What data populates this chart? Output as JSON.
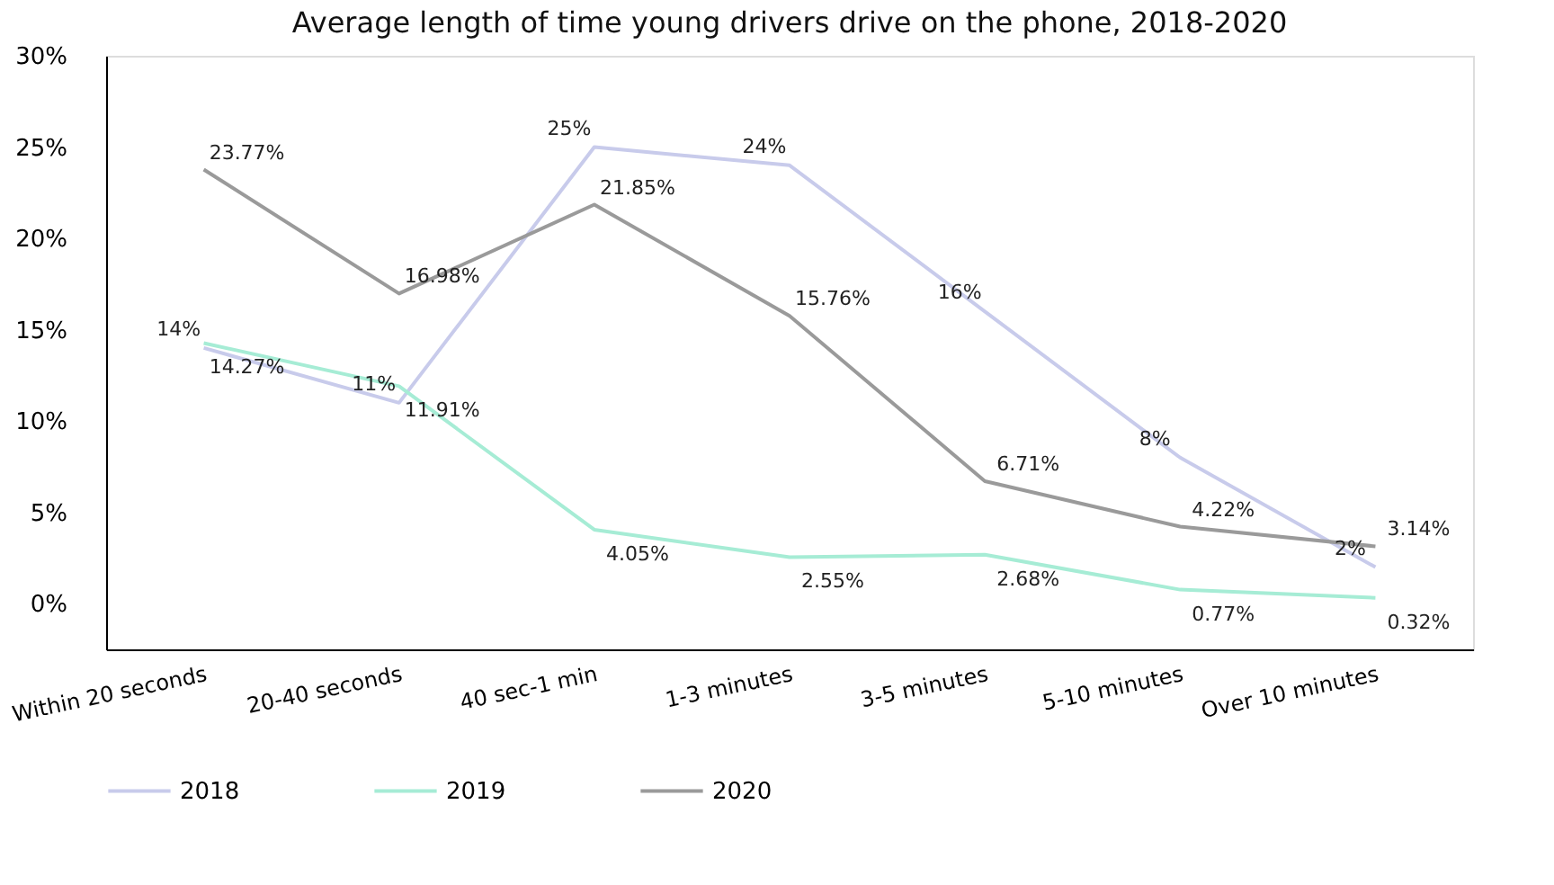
{
  "chart_data": {
    "type": "line",
    "title": "Average length of time young drivers drive on the phone, 2018-2020",
    "categories": [
      "Within 20 seconds",
      "20-40 seconds",
      "40 sec-1 min",
      "1-3 minutes",
      "3-5 minutes",
      "5-10 minutes",
      "Over 10 minutes"
    ],
    "series": [
      {
        "name": "2018",
        "color": "#c8cbeb",
        "values": [
          14,
          11,
          25,
          24,
          16,
          8,
          2
        ],
        "value_labels": [
          "14%",
          "11%",
          "25%",
          "24%",
          "16%",
          "8%",
          "2%"
        ]
      },
      {
        "name": "2019",
        "color": "#a6ecd5",
        "values": [
          14.27,
          11.91,
          4.05,
          2.55,
          2.68,
          0.77,
          0.32
        ],
        "value_labels": [
          "14.27%",
          "11.91%",
          "4.05%",
          "2.55%",
          "2.68%",
          "0.77%",
          "0.32%"
        ]
      },
      {
        "name": "2020",
        "color": "#9a9a9a",
        "values": [
          23.77,
          16.98,
          21.85,
          15.76,
          6.71,
          4.22,
          3.14
        ],
        "value_labels": [
          "23.77%",
          "16.98%",
          "21.85%",
          "15.76%",
          "6.71%",
          "4.22%",
          "3.14%"
        ]
      }
    ],
    "ylim": [
      -2.5,
      30
    ],
    "yticks": [
      {
        "value": 0,
        "label": "0%"
      },
      {
        "value": 5,
        "label": "5%"
      },
      {
        "value": 10,
        "label": "10%"
      },
      {
        "value": 15,
        "label": "15%"
      },
      {
        "value": 20,
        "label": "20%"
      },
      {
        "value": 25,
        "label": "25%"
      },
      {
        "value": 30,
        "label": "30%"
      }
    ],
    "grid": false,
    "legend": "bottom",
    "marker": "none",
    "line_style": "solid"
  }
}
